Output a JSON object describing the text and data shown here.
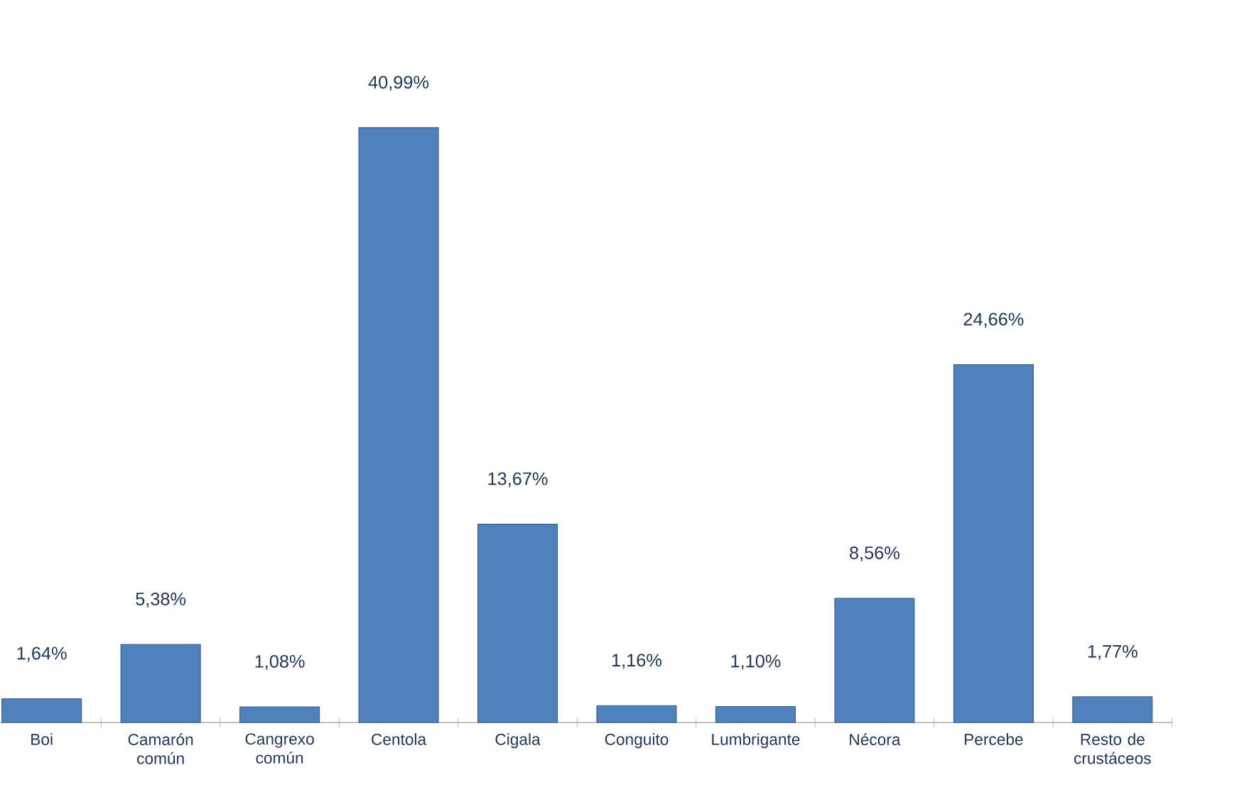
{
  "chart_data": {
    "type": "bar",
    "categories": [
      "Boi",
      "Camarón común",
      "Cangrexo común",
      "Centola",
      "Cigala",
      "Conguito",
      "Lumbrigante",
      "Nécora",
      "Percebe",
      "Resto de crustáceos"
    ],
    "values": [
      1.64,
      5.38,
      1.08,
      40.99,
      13.67,
      1.16,
      1.1,
      8.56,
      24.66,
      1.77
    ],
    "value_labels": [
      "1,64%",
      "5,38%",
      "1,08%",
      "40,99%",
      "13,67%",
      "1,16%",
      "1,10%",
      "8,56%",
      "24,66%",
      "1,77%"
    ],
    "color": "#4f81bd"
  }
}
